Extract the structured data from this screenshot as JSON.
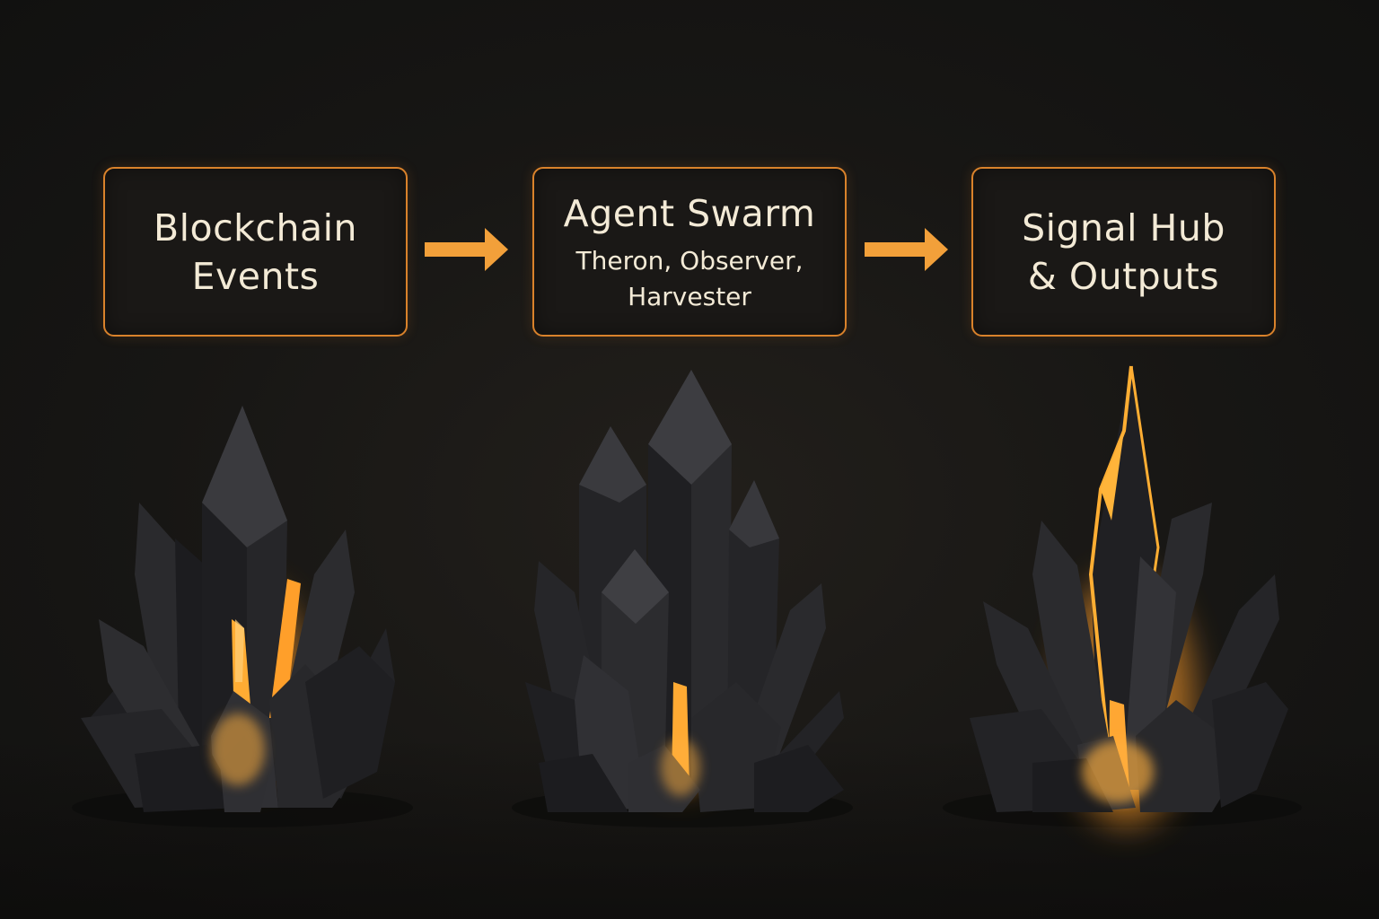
{
  "diagram": {
    "nodes": [
      {
        "title": "Blockchain\nEvents",
        "subtitle": ""
      },
      {
        "title": "Agent Swarm",
        "subtitle": "Theron, Observer,\nHarvester"
      },
      {
        "title": "Signal Hub\n& Outputs",
        "subtitle": ""
      }
    ],
    "edges": [
      {
        "from": 0,
        "to": 1
      },
      {
        "from": 1,
        "to": 2
      }
    ]
  },
  "colors": {
    "accent": "#d9822b",
    "arrow": "#f2a03a",
    "glow": "#ffb53a",
    "text": "#f3ead6",
    "background": "#141312",
    "crystal": "#2b2b2d"
  },
  "illustrations": [
    {
      "icon": "crystal-cluster-icon",
      "glow": "low"
    },
    {
      "icon": "crystal-cluster-icon",
      "glow": "low"
    },
    {
      "icon": "crystal-cluster-icon",
      "glow": "high"
    }
  ]
}
